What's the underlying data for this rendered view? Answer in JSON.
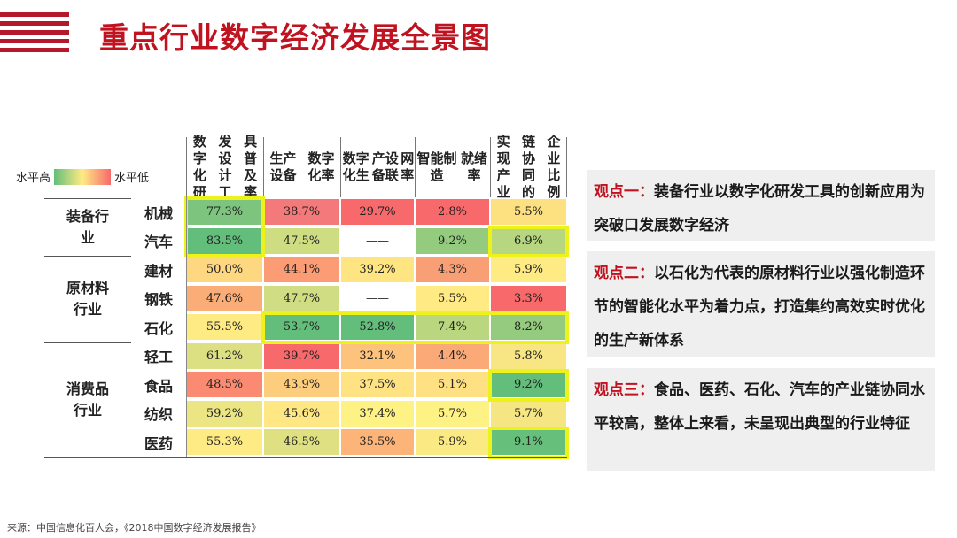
{
  "title": "重点行业数字经济发展全景图",
  "legend": {
    "high": "水平高",
    "low": "水平低"
  },
  "chart_data": {
    "type": "heatmap",
    "columns": [
      "数字化研发设计工具普及率",
      "生产设备数字化率",
      "数字化生产设备联网率",
      "智能制造就绪率",
      "实现产业链协同的企业比例"
    ],
    "column_lines": [
      [
        "数字化研",
        "发设计工",
        "具普及率"
      ],
      [
        "生产设备",
        "数字化率"
      ],
      [
        "数字化生",
        "产设备联",
        "网率"
      ],
      [
        "智能制造",
        "就绪率"
      ],
      [
        "实现产业",
        "链协同的",
        "企业比例"
      ]
    ],
    "groups": [
      {
        "name": "装备行业",
        "lines": [
          "装备行",
          "业"
        ],
        "rows": [
          0,
          1
        ]
      },
      {
        "name": "原材料行业",
        "lines": [
          "原材料",
          "行业"
        ],
        "rows": [
          2,
          3,
          4
        ]
      },
      {
        "name": "消费品行业",
        "lines": [
          "消费品",
          "行业"
        ],
        "rows": [
          5,
          6,
          7,
          8
        ]
      }
    ],
    "industries": [
      "机械",
      "汽车",
      "建材",
      "钢铁",
      "石化",
      "轻工",
      "食品",
      "纺织",
      "医药"
    ],
    "values": [
      [
        "77.3%",
        "38.7%",
        "29.7%",
        "2.8%",
        "5.5%"
      ],
      [
        "83.5%",
        "47.5%",
        "——",
        "9.2%",
        "6.9%"
      ],
      [
        "50.0%",
        "44.1%",
        "39.2%",
        "4.3%",
        "5.9%"
      ],
      [
        "47.6%",
        "47.7%",
        "——",
        "5.5%",
        "3.3%"
      ],
      [
        "55.5%",
        "53.7%",
        "52.8%",
        "7.4%",
        "8.2%"
      ],
      [
        "61.2%",
        "39.7%",
        "32.1%",
        "4.4%",
        "5.8%"
      ],
      [
        "48.5%",
        "43.9%",
        "37.5%",
        "5.1%",
        "9.2%"
      ],
      [
        "59.2%",
        "45.6%",
        "37.4%",
        "5.7%",
        "5.7%"
      ],
      [
        "55.3%",
        "46.5%",
        "35.5%",
        "5.9%",
        "9.1%"
      ]
    ],
    "colors": [
      [
        "#7dc47e",
        "#f4797a",
        "#f8696b",
        "#f8696b",
        "#fde07f"
      ],
      [
        "#63be7b",
        "#cfdd82",
        "#ffffff",
        "#94cb7e",
        "#b7d680"
      ],
      [
        "#fed880",
        "#fb9c74",
        "#ffe482",
        "#f99f76",
        "#ffeb84"
      ],
      [
        "#fbad78",
        "#d1dd82",
        "#ffffff",
        "#ffea84",
        "#f8696b"
      ],
      [
        "#ffeb84",
        "#63be7b",
        "#63be7b",
        "#bad780",
        "#95cb7e"
      ],
      [
        "#dde082",
        "#f8696b",
        "#fdc27c",
        "#fbaa77",
        "#f8e583"
      ],
      [
        "#fa8a71",
        "#fdcd7e",
        "#ffe282",
        "#ffe082",
        "#63be7b"
      ],
      [
        "#ebe583",
        "#ffe884",
        "#fff284",
        "#fff284",
        "#f6e583"
      ],
      [
        "#ffeb84",
        "#dee082",
        "#fcb479",
        "#fbe984",
        "#66c07c"
      ]
    ],
    "highlights": [
      {
        "rows": [
          0,
          1
        ],
        "cols": [
          0,
          0
        ]
      },
      {
        "rows": [
          1,
          1
        ],
        "cols": [
          4,
          4
        ]
      },
      {
        "rows": [
          4,
          4
        ],
        "cols": [
          1,
          4
        ]
      },
      {
        "rows": [
          6,
          6
        ],
        "cols": [
          4,
          4
        ]
      },
      {
        "rows": [
          8,
          8
        ],
        "cols": [
          4,
          4
        ]
      }
    ]
  },
  "viewpoints": [
    {
      "head": "观点一：",
      "body": "装备行业以数字化研发工具的创新应用为突破口发展数字经济"
    },
    {
      "head": "观点二：",
      "body": "以石化为代表的原材料行业以强化制造环节的智能化水平为着力点，打造集约高效实时优化的生产新体系"
    },
    {
      "head": "观点三：",
      "body": "食品、医药、石化、汽车的产业链协同水平较高，整体上来看，未呈现出典型的行业特征"
    }
  ],
  "source": "来源：中国信息化百人会，《2018中国数字经济发展报告》"
}
